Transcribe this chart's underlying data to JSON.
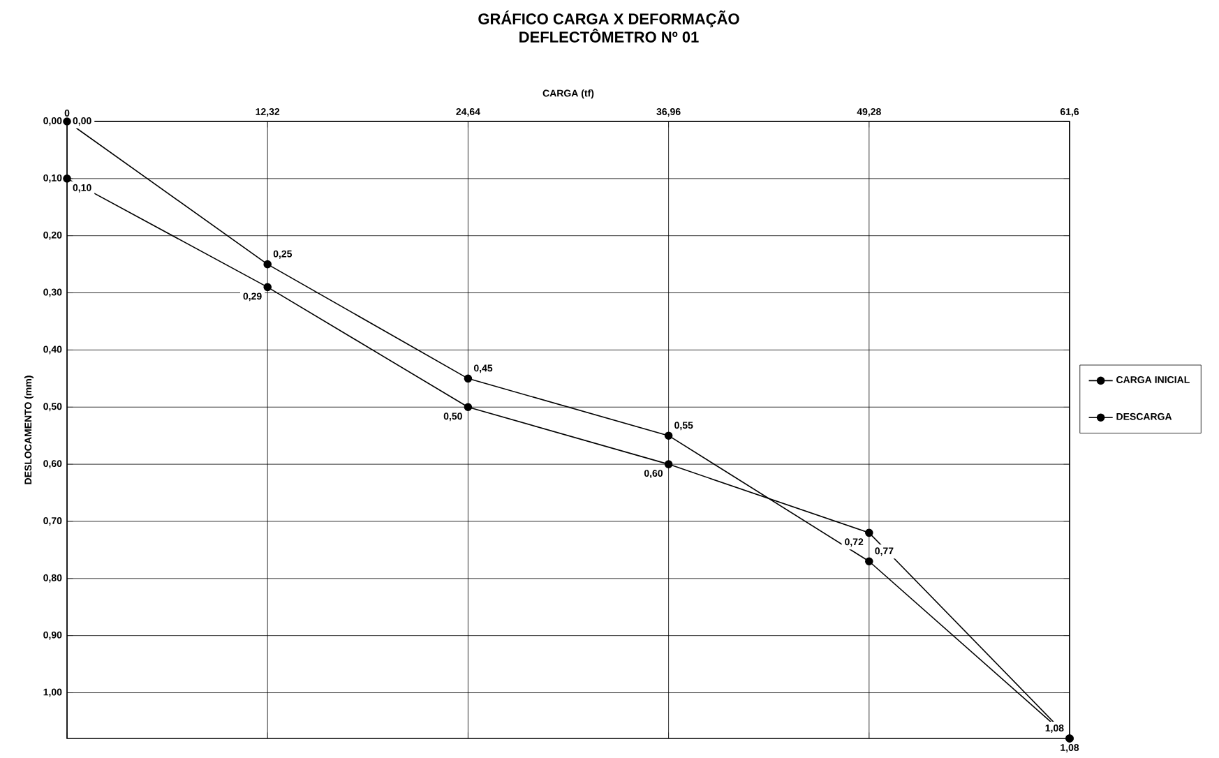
{
  "chart_data": {
    "type": "line",
    "title": "GRÁFICO CARGA X DEFORMAÇÃO",
    "subtitle": "DEFLECTÔMETRO Nº 01",
    "xlabel": "CARGA (tf)",
    "ylabel": "DESLOCAMENTO (mm)",
    "x": [
      0,
      12.32,
      24.64,
      36.96,
      49.28,
      61.6
    ],
    "series": [
      {
        "name": "CARGA INICIAL",
        "color": "#000000",
        "values": [
          0,
          0.25,
          0.45,
          0.55,
          0.77,
          1.08
        ],
        "value_labels": [
          "0,00",
          "0,25",
          "0,45",
          "0,55",
          "0,77",
          "1,08"
        ]
      },
      {
        "name": "DESCARGA",
        "color": "#000000",
        "values": [
          0.1,
          0.29,
          0.5,
          0.6,
          0.72,
          1.08
        ],
        "value_labels": [
          "0,10",
          "0,29",
          "0,50",
          "0,60",
          "0,72",
          "1,08"
        ]
      }
    ],
    "xlim": [
      0,
      61.6
    ],
    "ylim": [
      1.08,
      0
    ],
    "xticks": [
      0,
      {
        "value": 12.32,
        "label": "12,32"
      },
      {
        "value": 24.64,
        "label": "24,64"
      },
      {
        "value": 36.96,
        "label": "36,96"
      },
      {
        "value": 49.28,
        "label": "49,28"
      },
      {
        "value": 61.6,
        "label": "61,6"
      }
    ],
    "yticks": [
      {
        "value": 0,
        "label": "0,00"
      },
      {
        "value": 0.1,
        "label": "0,10"
      },
      {
        "value": 0.2,
        "label": "0,20"
      },
      {
        "value": 0.3,
        "label": "0,30"
      },
      {
        "value": 0.4,
        "label": "0,40"
      },
      {
        "value": 0.5,
        "label": "0,50"
      },
      {
        "value": 0.6,
        "label": "0,60"
      },
      {
        "value": 0.7,
        "label": "0,70"
      },
      {
        "value": 0.8,
        "label": "0,80"
      },
      {
        "value": 0.9,
        "label": "0,90"
      },
      {
        "value": 1.0,
        "label": "1,00"
      }
    ],
    "grid": true,
    "legend": "right",
    "marker": "circle",
    "line_style": "solid"
  }
}
